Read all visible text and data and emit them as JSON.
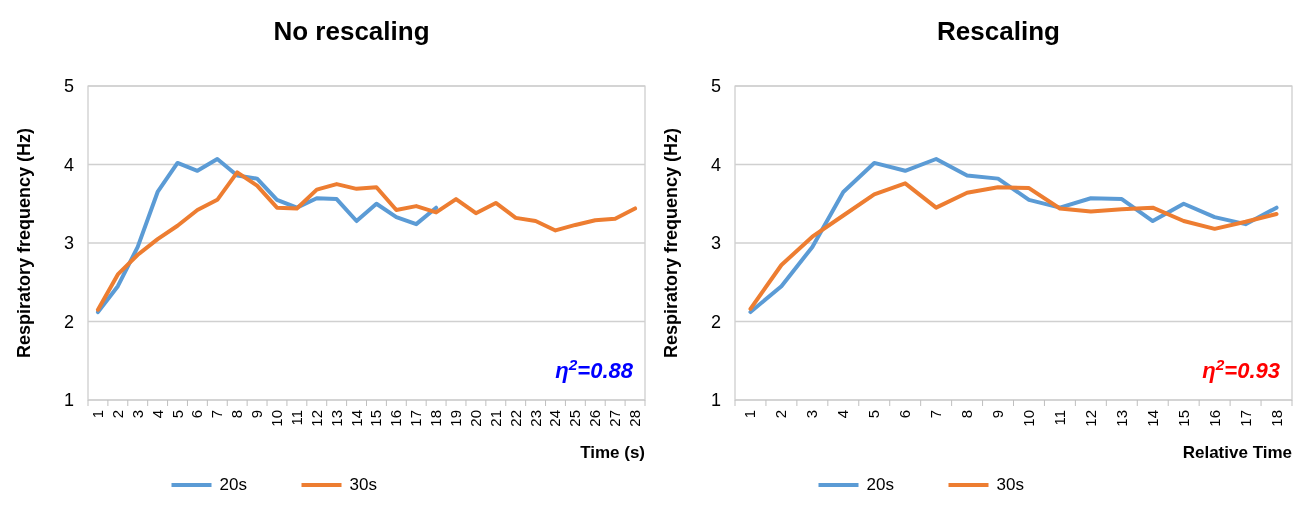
{
  "chart_data": [
    {
      "type": "line",
      "title": "No rescaling",
      "xlabel": "Time (s)",
      "ylabel": "Respiratory frequency (Hz)",
      "annotations": [
        "η$^{2}$=0.88"
      ],
      "categories": [
        "1",
        "2",
        "3",
        "4",
        "5",
        "6",
        "7",
        "8",
        "9",
        "10",
        "11",
        "12",
        "13",
        "14",
        "15",
        "16",
        "17",
        "18",
        "19",
        "20",
        "21",
        "22",
        "23",
        "24",
        "25",
        "26",
        "27",
        "28"
      ],
      "series": [
        {
          "name": "20s",
          "color": "#5b9bd5",
          "values": [
            2.12,
            2.45,
            2.95,
            3.65,
            4.02,
            3.92,
            4.07,
            3.86,
            3.82,
            3.55,
            3.45,
            3.57,
            3.56,
            3.28,
            3.5,
            3.33,
            3.24,
            3.45,
            null,
            null,
            null,
            null,
            null,
            null,
            null,
            null,
            null,
            null
          ]
        },
        {
          "name": "30s",
          "color": "#ed7d31",
          "values": [
            2.15,
            2.6,
            2.85,
            3.05,
            3.22,
            3.42,
            3.55,
            3.9,
            3.73,
            3.45,
            3.44,
            3.68,
            3.75,
            3.69,
            3.71,
            3.42,
            3.47,
            3.39,
            3.56,
            3.38,
            3.51,
            3.32,
            3.28,
            3.16,
            3.23,
            3.29,
            3.31,
            3.44
          ]
        }
      ],
      "ylim": [
        1,
        5
      ],
      "yticks": [
        1,
        2,
        3,
        4,
        5
      ],
      "grid": "y",
      "legend": "bottom"
    },
    {
      "type": "line",
      "title": "Rescaling",
      "xlabel": "Relative Time",
      "ylabel": "Respiratory frequency (Hz)",
      "annotations": [
        "η$^{2}$=0.93"
      ],
      "categories": [
        "1",
        "2",
        "3",
        "4",
        "5",
        "6",
        "7",
        "8",
        "9",
        "10",
        "11",
        "12",
        "13",
        "14",
        "15",
        "16",
        "17",
        "18"
      ],
      "series": [
        {
          "name": "20s",
          "color": "#5b9bd5",
          "values": [
            2.12,
            2.45,
            2.95,
            3.65,
            4.02,
            3.92,
            4.07,
            3.86,
            3.82,
            3.55,
            3.45,
            3.57,
            3.56,
            3.28,
            3.5,
            3.33,
            3.24,
            3.45
          ]
        },
        {
          "name": "30s",
          "color": "#ed7d31",
          "values": [
            2.16,
            2.72,
            3.08,
            3.35,
            3.62,
            3.76,
            3.45,
            3.64,
            3.71,
            3.7,
            3.44,
            3.4,
            3.43,
            3.45,
            3.28,
            3.18,
            3.27,
            3.37
          ]
        }
      ],
      "ylim": [
        1,
        5
      ],
      "yticks": [
        1,
        2,
        3,
        4,
        5
      ],
      "grid": "y",
      "legend": "bottom"
    }
  ]
}
